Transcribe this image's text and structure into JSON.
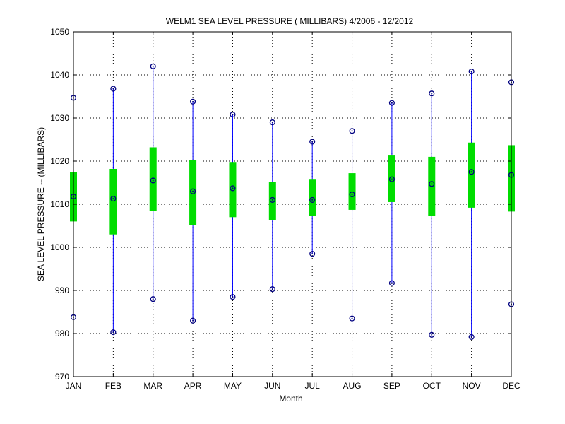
{
  "chart_data": {
    "type": "box",
    "title": "WELM1  SEA LEVEL PRESSURE ( MILLIBARS) 4/2006 - 12/2012",
    "xlabel": "Month",
    "ylabel": "SEA LEVEL PRESSURE -- (MILLIBARS)",
    "ylim": [
      970,
      1050
    ],
    "yticks": [
      970,
      980,
      990,
      1000,
      1010,
      1020,
      1030,
      1040,
      1050
    ],
    "grid": true,
    "categories": [
      "JAN",
      "FEB",
      "MAR",
      "APR",
      "MAY",
      "JUN",
      "JUL",
      "AUG",
      "SEP",
      "OCT",
      "NOV",
      "DEC"
    ],
    "series": [
      {
        "min": [
          983.8,
          980.3,
          988.0,
          983.0,
          988.5,
          990.3,
          998.5,
          983.5,
          991.7,
          979.7,
          979.2,
          986.8
        ],
        "q1": [
          1006.0,
          1003.0,
          1008.5,
          1005.2,
          1007.0,
          1006.3,
          1007.3,
          1008.7,
          1010.5,
          1007.3,
          1009.2,
          1008.3
        ],
        "median": [
          1011.8,
          1011.3,
          1015.5,
          1013.0,
          1013.7,
          1011.0,
          1011.0,
          1012.3,
          1015.8,
          1014.7,
          1017.5,
          1016.8
        ],
        "q3": [
          1017.5,
          1018.2,
          1023.2,
          1020.2,
          1019.8,
          1015.2,
          1015.7,
          1017.2,
          1021.3,
          1021.0,
          1024.3,
          1023.7
        ],
        "max": [
          1034.7,
          1036.8,
          1042.0,
          1033.8,
          1030.8,
          1029.0,
          1024.5,
          1027.0,
          1033.5,
          1035.7,
          1040.8,
          1038.3
        ]
      }
    ],
    "colors": {
      "whisker": "#0000ff",
      "box": "#00dd00",
      "marker": "#000080",
      "grid": "#000000"
    }
  }
}
